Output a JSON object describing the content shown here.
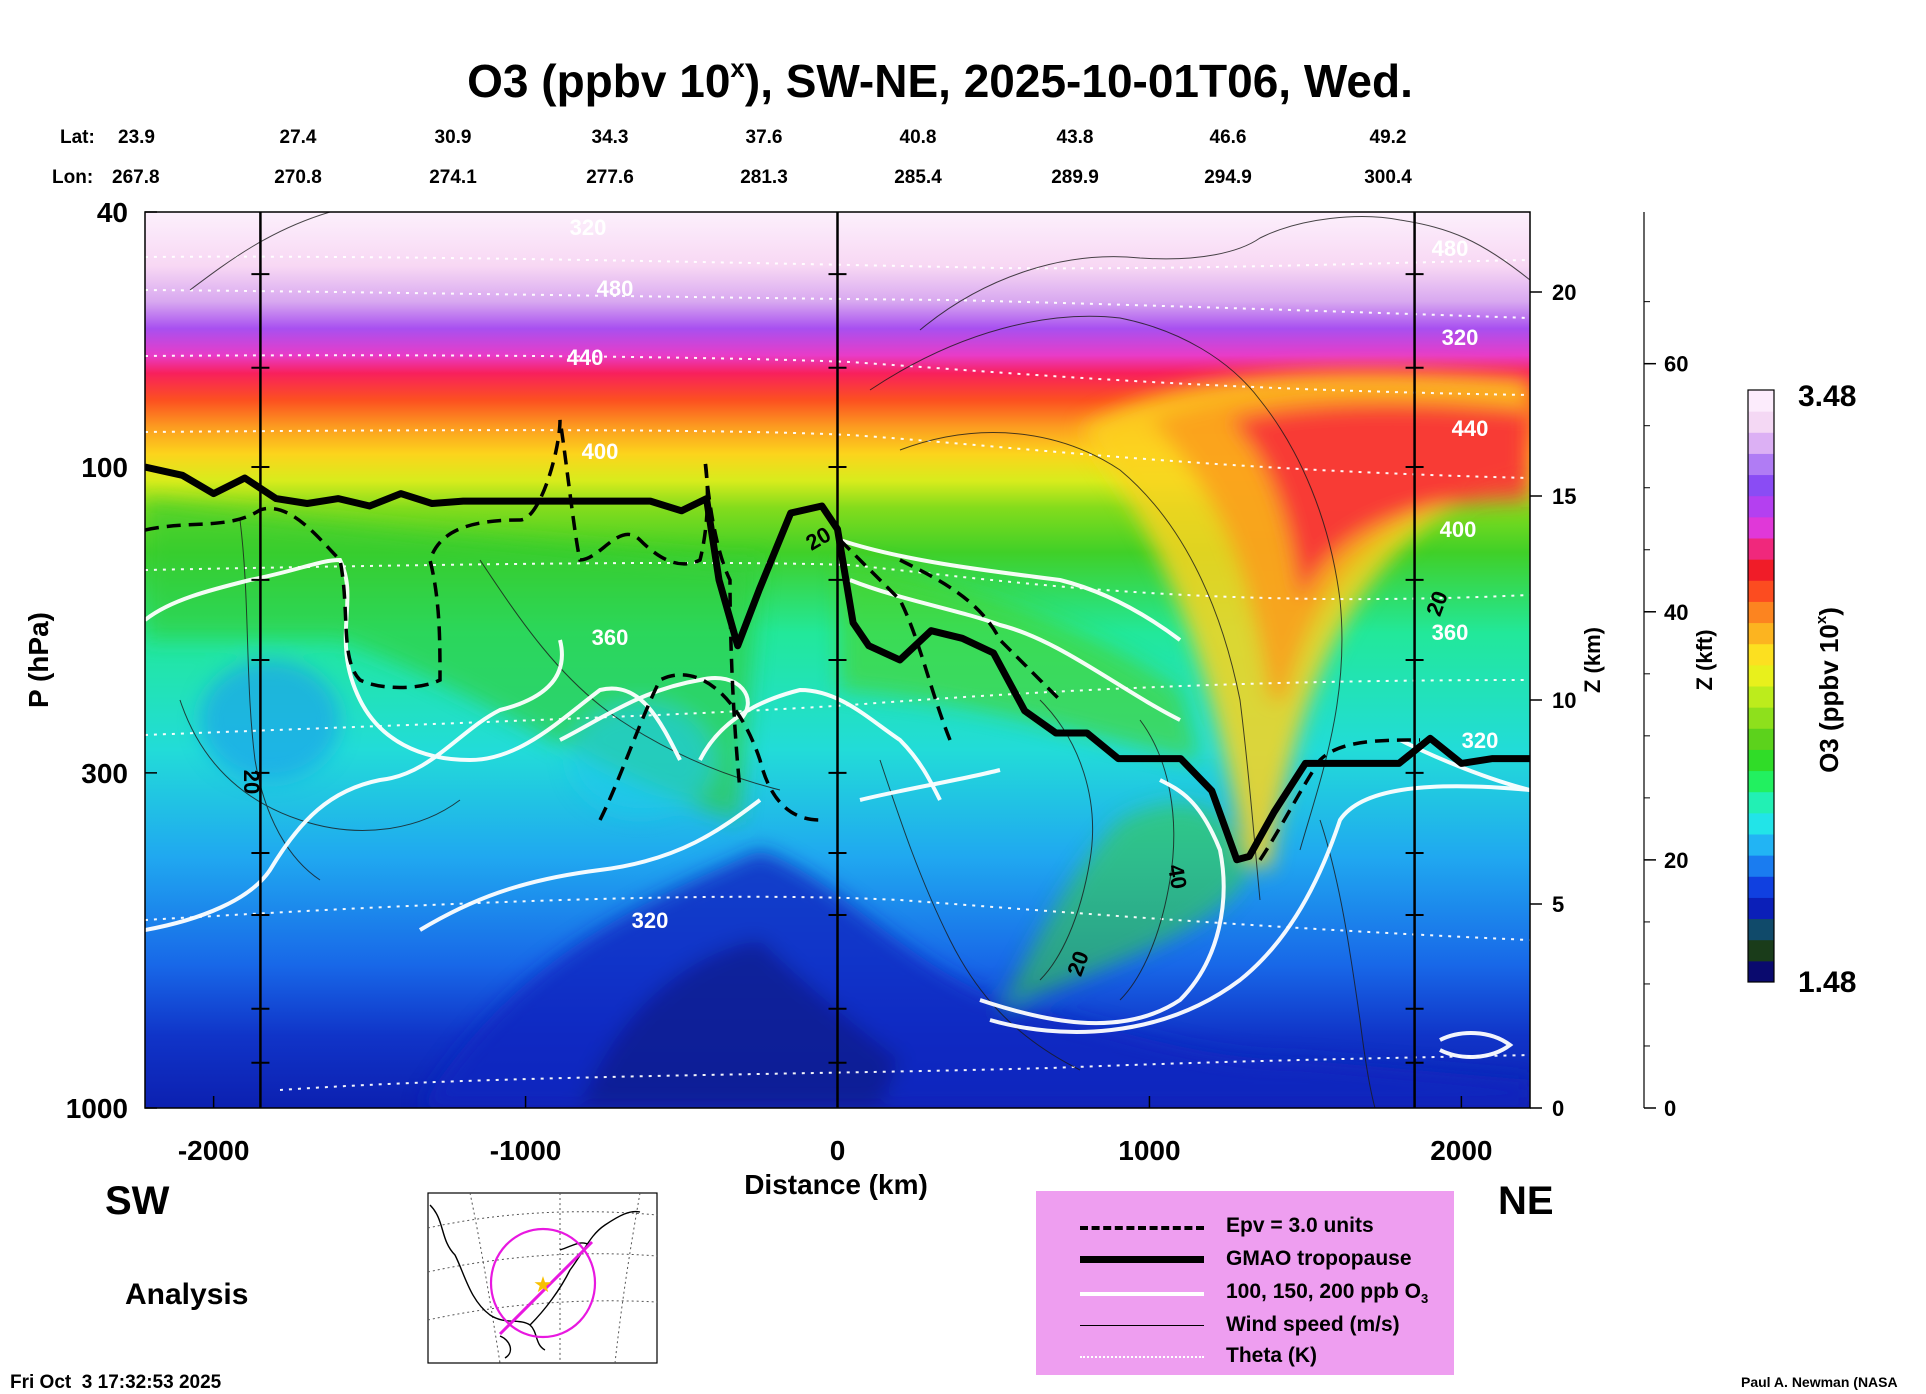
{
  "title": {
    "prefix": "O3 (ppbv 10",
    "superscript": "x",
    "suffix": "), SW-NE, 2025-10-01T06, Wed."
  },
  "coords": {
    "lat_label": "Lat:",
    "lon_label": "Lon:",
    "lat": [
      "23.9",
      "27.4",
      "30.9",
      "34.3",
      "37.6",
      "40.8",
      "43.8",
      "46.6",
      "49.2"
    ],
    "lon": [
      "267.8",
      "270.8",
      "274.1",
      "277.6",
      "281.3",
      "285.4",
      "289.9",
      "294.9",
      "300.4"
    ]
  },
  "axes": {
    "x_label": "Distance (km)",
    "y_label": "P (hPa)",
    "z_km_label": "Z (km)",
    "z_kft_label": "Z (kft)",
    "x_ticks": [
      "-2000",
      "-1000",
      "0",
      "1000",
      "2000"
    ],
    "p_ticks": [
      "40",
      "100",
      "300",
      "1000"
    ],
    "z_km_ticks": [
      "0",
      "5",
      "10",
      "15",
      "20"
    ],
    "z_kft_ticks": [
      "0",
      "20",
      "40",
      "60"
    ]
  },
  "direction": {
    "left": "SW",
    "right": "NE"
  },
  "mode_label": "Analysis",
  "timestamp": "Fri Oct  3 17:32:53 2025",
  "credit": "Paul A. Newman (NASA",
  "colorbar": {
    "label_prefix": "O3 (ppbv 10",
    "label_superscript": "x",
    "label_suffix": ")",
    "max_label": "3.48",
    "min_label": "1.48",
    "colors": [
      "#0a0a6e",
      "#1a3c1a",
      "#104a6a",
      "#0b1fb8",
      "#1040e0",
      "#1a7cf0",
      "#22b4f4",
      "#22e4e8",
      "#22f0b4",
      "#22f060",
      "#30dc28",
      "#5cd21c",
      "#8ee01c",
      "#bcec1c",
      "#e8f01c",
      "#fce020",
      "#fcb420",
      "#fc8420",
      "#fc4c20",
      "#f01c28",
      "#f0287c",
      "#e038d8",
      "#b440f0",
      "#8a4cf4",
      "#b07cf4",
      "#dcb0f4",
      "#f4d8f4",
      "#fcecfc"
    ]
  },
  "contour_labels": {
    "theta": [
      "320",
      "320",
      "360",
      "360",
      "400",
      "400",
      "440",
      "440",
      "480",
      "480",
      "320",
      "320"
    ],
    "wind": [
      "20",
      "20",
      "20",
      "40",
      "20"
    ]
  },
  "legend": {
    "items": [
      {
        "label": "Epv = 3.0 units",
        "style": "dashed-thick"
      },
      {
        "label": "GMAO tropopause",
        "style": "solid-heavy"
      },
      {
        "label": "100, 150, 200 ppb O",
        "subscript": "3",
        "style": "solid-white"
      },
      {
        "label": "Wind speed (m/s)",
        "style": "solid-thin"
      },
      {
        "label": "Theta (K)",
        "style": "dotted-white"
      }
    ]
  },
  "chart_data": {
    "type": "heatmap",
    "title": "O3 (ppbv 10^x), SW-NE, 2025-10-01T06, Wed.",
    "xlabel": "Distance (km)",
    "ylabel": "P (hPa)",
    "xlim": [
      -2220,
      2220
    ],
    "ylim": [
      1000,
      40
    ],
    "y_scale": "log",
    "z_km_range": [
      0,
      22.5
    ],
    "colorbar_range": [
      1.48,
      3.48
    ],
    "vertical_reference_lines_km": [
      -1850,
      0,
      1850
    ],
    "tropopause": {
      "x": [
        -2220,
        -2100,
        -2000,
        -1900,
        -1800,
        -1700,
        -1600,
        -1500,
        -1400,
        -1300,
        -1200,
        -1100,
        -1000,
        -900,
        -800,
        -700,
        -600,
        -500,
        -420,
        -380,
        -320,
        -250,
        -150,
        -50,
        0,
        50,
        100,
        200,
        300,
        400,
        500,
        600,
        700,
        800,
        900,
        1000,
        1100,
        1200,
        1280,
        1320,
        1400,
        1500,
        1600,
        1700,
        1800,
        1900,
        2000,
        2100,
        2220
      ],
      "p": [
        100,
        103,
        110,
        104,
        112,
        114,
        112,
        115,
        110,
        114,
        113,
        113,
        113,
        113,
        113,
        113,
        113,
        117,
        112,
        150,
        190,
        155,
        118,
        115,
        125,
        175,
        190,
        200,
        180,
        185,
        195,
        240,
        260,
        260,
        285,
        285,
        285,
        320,
        410,
        405,
        345,
        290,
        290,
        290,
        290,
        265,
        290,
        285,
        285
      ]
    },
    "o3_log10_profile": {
      "p_levels": [
        1000,
        700,
        500,
        300,
        200,
        150,
        100,
        70,
        50,
        40
      ],
      "values": [
        1.6,
        1.75,
        1.85,
        2.0,
        2.3,
        2.5,
        2.8,
        3.1,
        3.3,
        3.45
      ]
    }
  }
}
